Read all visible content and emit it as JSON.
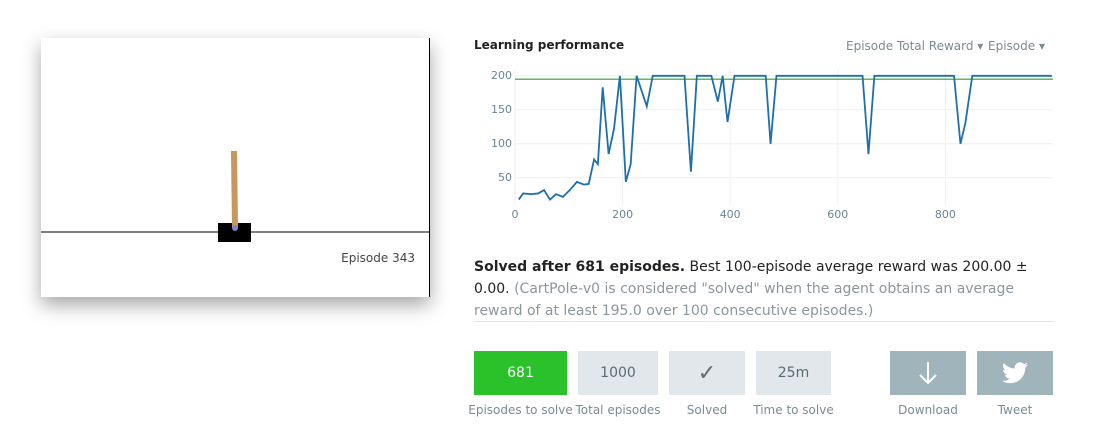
{
  "video": {
    "episode": "Episode 343"
  },
  "chart_data": {
    "type": "line",
    "title": "Learning performance",
    "dropdowns": [
      "Episode Total Reward ▾",
      "Episode ▾"
    ],
    "x": [
      7,
      15,
      30,
      43,
      54,
      65,
      76,
      89,
      102,
      115,
      128,
      137,
      147,
      154,
      163,
      174,
      184,
      195,
      206,
      215,
      226,
      245,
      256,
      315,
      327,
      338,
      365,
      377,
      386,
      395,
      408,
      466,
      475,
      486,
      646,
      657,
      668,
      816,
      828,
      837,
      850,
      998
    ],
    "series": [
      {
        "color": "#1f6fa8",
        "values": [
          18,
          27,
          26,
          27,
          32,
          18,
          26,
          22,
          32,
          44,
          40,
          41,
          77,
          70,
          183,
          85,
          122,
          200,
          44,
          70,
          200,
          155,
          200,
          200,
          59,
          200,
          200,
          162,
          200,
          132,
          200,
          200,
          100,
          200,
          200,
          85,
          200,
          200,
          100,
          130,
          200,
          200
        ]
      }
    ],
    "threshold": {
      "value": 195,
      "color": "#2ca02c"
    },
    "xlim": [
      0,
      1000
    ],
    "ylim": [
      10,
      210
    ],
    "xticks": [
      0,
      200,
      400,
      600,
      800
    ],
    "yticks": [
      50,
      100,
      150,
      200
    ],
    "grid": true
  },
  "stats": {
    "solved": "Solved after 681 episodes.",
    "best": "Best 100-episode average reward was 200.00 ± 0.00.",
    "note": "(CartPole-v0 is considered \"solved\" when the agent obtains an average reward of at least 195.0 over 100 consecutive episodes.)"
  },
  "cards": [
    {
      "value": "681",
      "label": "Episodes to solve"
    },
    {
      "value": "1000",
      "label": "Total episodes"
    },
    {
      "value": "✓",
      "label": "Solved"
    },
    {
      "value": "25m",
      "label": "Time to solve"
    }
  ],
  "actions": [
    {
      "label": "Download"
    },
    {
      "label": "Tweet"
    }
  ]
}
